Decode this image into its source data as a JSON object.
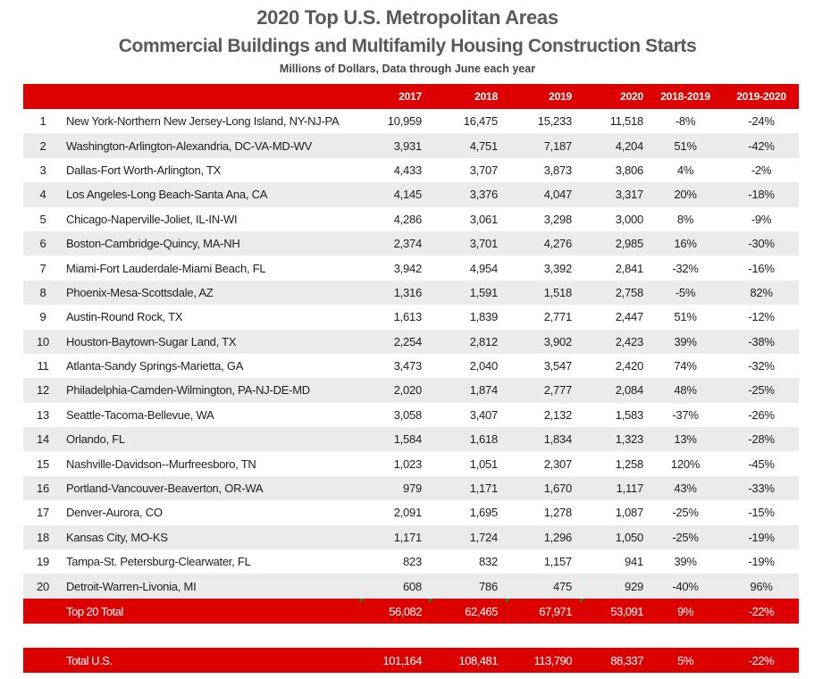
{
  "chart_data": {
    "type": "table",
    "title": "2020 Top U.S. Metropolitan Areas",
    "subtitle_main": "Commercial Buildings and Multifamily Housing Construction Starts",
    "subtitle": "Millions of Dollars, Data through June each year",
    "columns": {
      "rank": "",
      "metro": "",
      "y2017": "2017",
      "y2018": "2018",
      "y2019": "2019",
      "y2020": "2020",
      "chg_2018_2019": "2018-2019",
      "chg_2019_2020": "2019-2020"
    },
    "rows": [
      {
        "rank": "1",
        "metro": "New York-Northern New Jersey-Long Island, NY-NJ-PA",
        "y2017": "10,959",
        "y2018": "16,475",
        "y2019": "15,233",
        "y2020": "11,518",
        "chg_2018_2019": "-8%",
        "chg_2019_2020": "-24%"
      },
      {
        "rank": "2",
        "metro": "Washington-Arlington-Alexandria, DC-VA-MD-WV",
        "y2017": "3,931",
        "y2018": "4,751",
        "y2019": "7,187",
        "y2020": "4,204",
        "chg_2018_2019": "51%",
        "chg_2019_2020": "-42%"
      },
      {
        "rank": "3",
        "metro": "Dallas-Fort Worth-Arlington, TX",
        "y2017": "4,433",
        "y2018": "3,707",
        "y2019": "3,873",
        "y2020": "3,806",
        "chg_2018_2019": "4%",
        "chg_2019_2020": "-2%"
      },
      {
        "rank": "4",
        "metro": "Los Angeles-Long Beach-Santa Ana, CA",
        "y2017": "4,145",
        "y2018": "3,376",
        "y2019": "4,047",
        "y2020": "3,317",
        "chg_2018_2019": "20%",
        "chg_2019_2020": "-18%"
      },
      {
        "rank": "5",
        "metro": "Chicago-Naperville-Joliet, IL-IN-WI",
        "y2017": "4,286",
        "y2018": "3,061",
        "y2019": "3,298",
        "y2020": "3,000",
        "chg_2018_2019": "8%",
        "chg_2019_2020": "-9%"
      },
      {
        "rank": "6",
        "metro": "Boston-Cambridge-Quincy, MA-NH",
        "y2017": "2,374",
        "y2018": "3,701",
        "y2019": "4,276",
        "y2020": "2,985",
        "chg_2018_2019": "16%",
        "chg_2019_2020": "-30%"
      },
      {
        "rank": "7",
        "metro": "Miami-Fort Lauderdale-Miami Beach, FL",
        "y2017": "3,942",
        "y2018": "4,954",
        "y2019": "3,392",
        "y2020": "2,841",
        "chg_2018_2019": "-32%",
        "chg_2019_2020": "-16%"
      },
      {
        "rank": "8",
        "metro": "Phoenix-Mesa-Scottsdale, AZ",
        "y2017": "1,316",
        "y2018": "1,591",
        "y2019": "1,518",
        "y2020": "2,758",
        "chg_2018_2019": "-5%",
        "chg_2019_2020": "82%"
      },
      {
        "rank": "9",
        "metro": "Austin-Round Rock, TX",
        "y2017": "1,613",
        "y2018": "1,839",
        "y2019": "2,771",
        "y2020": "2,447",
        "chg_2018_2019": "51%",
        "chg_2019_2020": "-12%"
      },
      {
        "rank": "10",
        "metro": "Houston-Baytown-Sugar Land, TX",
        "y2017": "2,254",
        "y2018": "2,812",
        "y2019": "3,902",
        "y2020": "2,423",
        "chg_2018_2019": "39%",
        "chg_2019_2020": "-38%"
      },
      {
        "rank": "11",
        "metro": "Atlanta-Sandy Springs-Marietta, GA",
        "y2017": "3,473",
        "y2018": "2,040",
        "y2019": "3,547",
        "y2020": "2,420",
        "chg_2018_2019": "74%",
        "chg_2019_2020": "-32%"
      },
      {
        "rank": "12",
        "metro": "Philadelphia-Camden-Wilmington, PA-NJ-DE-MD",
        "y2017": "2,020",
        "y2018": "1,874",
        "y2019": "2,777",
        "y2020": "2,084",
        "chg_2018_2019": "48%",
        "chg_2019_2020": "-25%"
      },
      {
        "rank": "13",
        "metro": "Seattle-Tacoma-Bellevue, WA",
        "y2017": "3,058",
        "y2018": "3,407",
        "y2019": "2,132",
        "y2020": "1,583",
        "chg_2018_2019": "-37%",
        "chg_2019_2020": "-26%"
      },
      {
        "rank": "14",
        "metro": "Orlando, FL",
        "y2017": "1,584",
        "y2018": "1,618",
        "y2019": "1,834",
        "y2020": "1,323",
        "chg_2018_2019": "13%",
        "chg_2019_2020": "-28%"
      },
      {
        "rank": "15",
        "metro": "Nashville-Davidson--Murfreesboro, TN",
        "y2017": "1,023",
        "y2018": "1,051",
        "y2019": "2,307",
        "y2020": "1,258",
        "chg_2018_2019": "120%",
        "chg_2019_2020": "-45%"
      },
      {
        "rank": "16",
        "metro": "Portland-Vancouver-Beaverton, OR-WA",
        "y2017": "979",
        "y2018": "1,171",
        "y2019": "1,670",
        "y2020": "1,117",
        "chg_2018_2019": "43%",
        "chg_2019_2020": "-33%"
      },
      {
        "rank": "17",
        "metro": "Denver-Aurora, CO",
        "y2017": "2,091",
        "y2018": "1,695",
        "y2019": "1,278",
        "y2020": "1,087",
        "chg_2018_2019": "-25%",
        "chg_2019_2020": "-15%"
      },
      {
        "rank": "18",
        "metro": "Kansas City, MO-KS",
        "y2017": "1,171",
        "y2018": "1,724",
        "y2019": "1,296",
        "y2020": "1,050",
        "chg_2018_2019": "-25%",
        "chg_2019_2020": "-19%"
      },
      {
        "rank": "19",
        "metro": "Tampa-St. Petersburg-Clearwater, FL",
        "y2017": "823",
        "y2018": "832",
        "y2019": "1,157",
        "y2020": "941",
        "chg_2018_2019": "39%",
        "chg_2019_2020": "-19%"
      },
      {
        "rank": "20",
        "metro": "Detroit-Warren-Livonia, MI",
        "y2017": "608",
        "y2018": "786",
        "y2019": "475",
        "y2020": "929",
        "chg_2018_2019": "-40%",
        "chg_2019_2020": "96%"
      }
    ],
    "top20_total": {
      "label": "Top 20 Total",
      "y2017": "56,082",
      "y2018": "62,465",
      "y2019": "67,971",
      "y2020": "53,091",
      "chg_2018_2019": "9%",
      "chg_2019_2020": "-22%"
    },
    "total_us": {
      "label": "Total U.S.",
      "y2017": "101,164",
      "y2018": "108,481",
      "y2019": "113,790",
      "y2020": "88,337",
      "chg_2018_2019": "5%",
      "chg_2019_2020": "-22%"
    }
  },
  "colors": {
    "header_bg": "#dd0000",
    "stripe": "#ebebeb",
    "title_text": "#595959",
    "body_text": "#1e1e1e",
    "error_indicator": "#1f8a1f"
  }
}
